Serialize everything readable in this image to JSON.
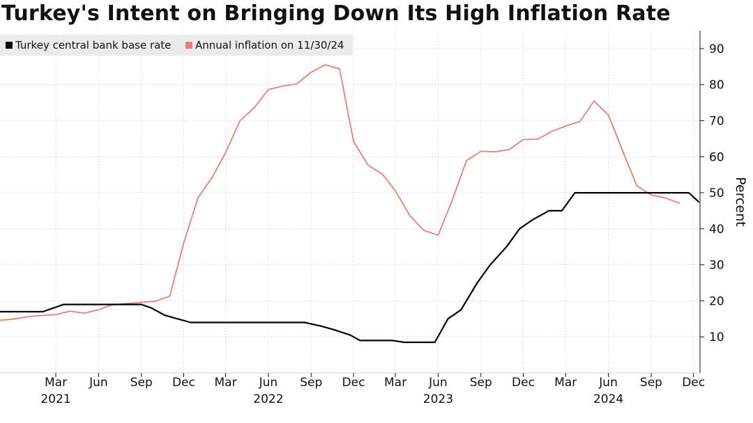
{
  "chart_data": {
    "type": "line",
    "title": "Turkey's Intent on Bringing Down Its High Inflation Rate",
    "ylabel": "Percent",
    "ylim": [
      0,
      95
    ],
    "yticks": [
      10,
      20,
      30,
      40,
      50,
      60,
      70,
      80,
      90
    ],
    "xlim": [
      "2020-11-01",
      "2024-12-15"
    ],
    "grid": true,
    "legend_position": "top-left",
    "x_ticks": [
      {
        "date": "2021-03-01",
        "label": "Mar",
        "year": "2021"
      },
      {
        "date": "2021-06-01",
        "label": "Jun"
      },
      {
        "date": "2021-09-01",
        "label": "Sep"
      },
      {
        "date": "2021-12-01",
        "label": "Dec"
      },
      {
        "date": "2022-03-01",
        "label": "Mar"
      },
      {
        "date": "2022-06-01",
        "label": "Jun",
        "year": "2022"
      },
      {
        "date": "2022-09-01",
        "label": "Sep"
      },
      {
        "date": "2022-12-01",
        "label": "Dec"
      },
      {
        "date": "2023-03-01",
        "label": "Mar"
      },
      {
        "date": "2023-06-01",
        "label": "Jun",
        "year": "2023"
      },
      {
        "date": "2023-09-01",
        "label": "Sep"
      },
      {
        "date": "2023-12-01",
        "label": "Dec"
      },
      {
        "date": "2024-03-01",
        "label": "Mar"
      },
      {
        "date": "2024-06-01",
        "label": "Jun",
        "year": "2024"
      },
      {
        "date": "2024-09-01",
        "label": "Sep"
      },
      {
        "date": "2024-12-01",
        "label": "Dec"
      }
    ],
    "series": [
      {
        "name": "Turkey central bank base rate",
        "color": "#000000",
        "points": [
          [
            "2020-11-01",
            17
          ],
          [
            "2020-12-20",
            17
          ],
          [
            "2021-01-01",
            17
          ],
          [
            "2021-02-01",
            17
          ],
          [
            "2021-03-18",
            19
          ],
          [
            "2021-04-01",
            19
          ],
          [
            "2021-06-01",
            19
          ],
          [
            "2021-08-01",
            19
          ],
          [
            "2021-09-01",
            19
          ],
          [
            "2021-09-23",
            18
          ],
          [
            "2021-10-21",
            16
          ],
          [
            "2021-11-18",
            15
          ],
          [
            "2021-12-16",
            14
          ],
          [
            "2022-03-01",
            14
          ],
          [
            "2022-06-01",
            14
          ],
          [
            "2022-08-18",
            14
          ],
          [
            "2022-09-22",
            13
          ],
          [
            "2022-10-20",
            12
          ],
          [
            "2022-11-24",
            10.5
          ],
          [
            "2022-12-15",
            9
          ],
          [
            "2023-01-19",
            9
          ],
          [
            "2023-02-23",
            9
          ],
          [
            "2023-03-20",
            8.5
          ],
          [
            "2023-04-27",
            8.5
          ],
          [
            "2023-05-25",
            8.5
          ],
          [
            "2023-06-22",
            15
          ],
          [
            "2023-07-20",
            17.5
          ],
          [
            "2023-08-24",
            25
          ],
          [
            "2023-09-21",
            30
          ],
          [
            "2023-10-26",
            35
          ],
          [
            "2023-11-23",
            40
          ],
          [
            "2023-12-21",
            42.5
          ],
          [
            "2024-01-25",
            45
          ],
          [
            "2024-02-22",
            45
          ],
          [
            "2024-03-21",
            50
          ],
          [
            "2024-04-25",
            50
          ],
          [
            "2024-06-27",
            50
          ],
          [
            "2024-08-20",
            50
          ],
          [
            "2024-10-17",
            50
          ],
          [
            "2024-11-21",
            50
          ],
          [
            "2024-12-12",
            47.5
          ]
        ]
      },
      {
        "name": "Annual inflation on 11/30/24",
        "color": "#e8837b",
        "points": [
          [
            "2020-11-01",
            14.6
          ],
          [
            "2020-12-01",
            14.97
          ],
          [
            "2021-01-01",
            15.61
          ],
          [
            "2021-02-01",
            15.97
          ],
          [
            "2021-03-01",
            16.19
          ],
          [
            "2021-04-01",
            17.14
          ],
          [
            "2021-05-01",
            16.59
          ],
          [
            "2021-06-01",
            17.53
          ],
          [
            "2021-07-01",
            18.95
          ],
          [
            "2021-08-01",
            19.25
          ],
          [
            "2021-09-01",
            19.58
          ],
          [
            "2021-10-01",
            19.89
          ],
          [
            "2021-11-01",
            21.31
          ],
          [
            "2021-12-01",
            36.08
          ],
          [
            "2022-01-01",
            48.69
          ],
          [
            "2022-02-01",
            54.44
          ],
          [
            "2022-03-01",
            61.14
          ],
          [
            "2022-04-01",
            69.97
          ],
          [
            "2022-05-01",
            73.5
          ],
          [
            "2022-06-01",
            78.62
          ],
          [
            "2022-07-01",
            79.6
          ],
          [
            "2022-08-01",
            80.21
          ],
          [
            "2022-09-01",
            83.45
          ],
          [
            "2022-10-01",
            85.51
          ],
          [
            "2022-11-01",
            84.39
          ],
          [
            "2022-12-01",
            64.27
          ],
          [
            "2023-01-01",
            57.68
          ],
          [
            "2023-02-01",
            55.18
          ],
          [
            "2023-03-01",
            50.51
          ],
          [
            "2023-04-01",
            43.68
          ],
          [
            "2023-05-01",
            39.59
          ],
          [
            "2023-06-01",
            38.21
          ],
          [
            "2023-07-01",
            47.83
          ],
          [
            "2023-08-01",
            58.94
          ],
          [
            "2023-09-01",
            61.53
          ],
          [
            "2023-10-01",
            61.36
          ],
          [
            "2023-11-01",
            61.98
          ],
          [
            "2023-12-01",
            64.77
          ],
          [
            "2024-01-01",
            64.86
          ],
          [
            "2024-02-01",
            67.07
          ],
          [
            "2024-03-01",
            68.5
          ],
          [
            "2024-04-01",
            69.8
          ],
          [
            "2024-05-01",
            75.45
          ],
          [
            "2024-06-01",
            71.6
          ],
          [
            "2024-07-01",
            61.78
          ],
          [
            "2024-08-01",
            51.97
          ],
          [
            "2024-09-01",
            49.38
          ],
          [
            "2024-10-01",
            48.58
          ],
          [
            "2024-11-01",
            47.09
          ]
        ]
      }
    ]
  }
}
